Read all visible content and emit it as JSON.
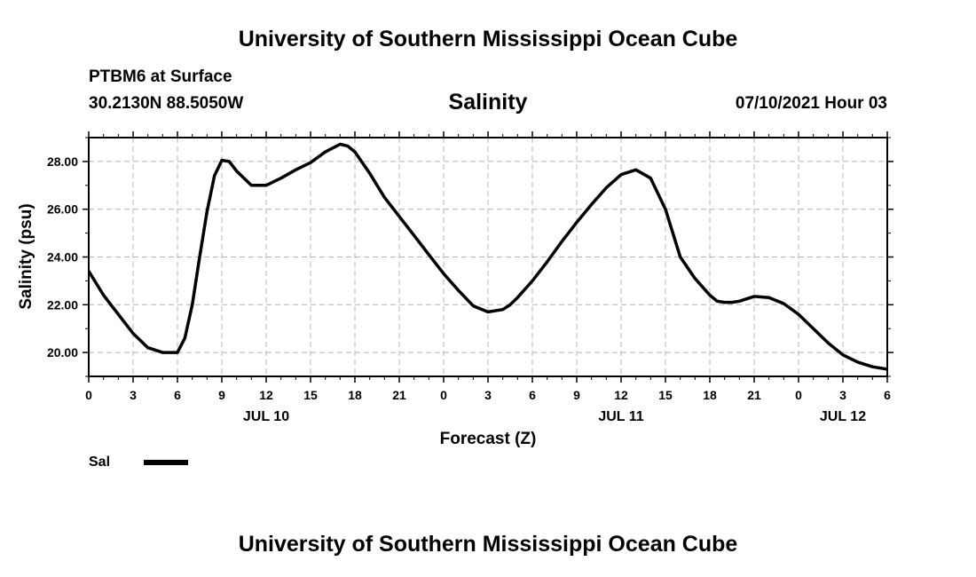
{
  "header": {
    "title": "University of Southern Mississippi Ocean Cube",
    "station": "PTBM6 at Surface",
    "coords": "30.2130N  88.5050W",
    "datetime": "07/10/2021 Hour 03"
  },
  "footer": {
    "title": "University of Southern Mississippi Ocean Cube"
  },
  "chart_data": {
    "type": "line",
    "title": "Salinity",
    "xlabel": "Forecast (Z)",
    "ylabel": "Salinity (psu)",
    "ylim": [
      19.0,
      29.0
    ],
    "xlim": [
      0,
      54
    ],
    "yticks": [
      "20.00",
      "22.00",
      "24.00",
      "26.00",
      "28.00"
    ],
    "ytick_values": [
      20,
      22,
      24,
      26,
      28
    ],
    "xticks": [
      "0",
      "3",
      "6",
      "9",
      "12",
      "15",
      "18",
      "21",
      "0",
      "3",
      "6",
      "9",
      "12",
      "15",
      "18",
      "21",
      "0",
      "3",
      "6"
    ],
    "date_labels": [
      {
        "label": "JUL 10",
        "hour": 12
      },
      {
        "label": "JUL 11",
        "hour": 36
      },
      {
        "label": "JUL 12",
        "hour": 51
      }
    ],
    "grid": true,
    "legend_position": "bottom-left",
    "series": [
      {
        "name": "Sal",
        "color": "#000000",
        "x": [
          0,
          1,
          2,
          3,
          4,
          5,
          6,
          6.5,
          7,
          7.5,
          8,
          8.5,
          9,
          9.5,
          10,
          11,
          12,
          13,
          14,
          15,
          16,
          17,
          17.5,
          18,
          19,
          20,
          21,
          22,
          23,
          24,
          25,
          26,
          27,
          28,
          28.5,
          29,
          30,
          31,
          32,
          33,
          34,
          35,
          36,
          37,
          38,
          39,
          40,
          41,
          42,
          42.5,
          43,
          43.5,
          44,
          45,
          46,
          47,
          48,
          49,
          50,
          51,
          52,
          53,
          54
        ],
        "y": [
          23.4,
          22.4,
          21.6,
          20.8,
          20.2,
          20.0,
          20.0,
          20.6,
          22.0,
          24.0,
          25.9,
          27.4,
          28.05,
          28.0,
          27.6,
          27.0,
          27.0,
          27.3,
          27.65,
          27.95,
          28.4,
          28.72,
          28.65,
          28.4,
          27.5,
          26.5,
          25.7,
          24.9,
          24.1,
          23.3,
          22.6,
          21.95,
          21.7,
          21.8,
          22.0,
          22.3,
          23.0,
          23.8,
          24.65,
          25.45,
          26.2,
          26.9,
          27.45,
          27.65,
          27.3,
          26.0,
          24.0,
          23.1,
          22.4,
          22.15,
          22.1,
          22.1,
          22.15,
          22.35,
          22.3,
          22.05,
          21.6,
          21.0,
          20.4,
          19.9,
          19.6,
          19.4,
          19.3
        ]
      }
    ]
  }
}
